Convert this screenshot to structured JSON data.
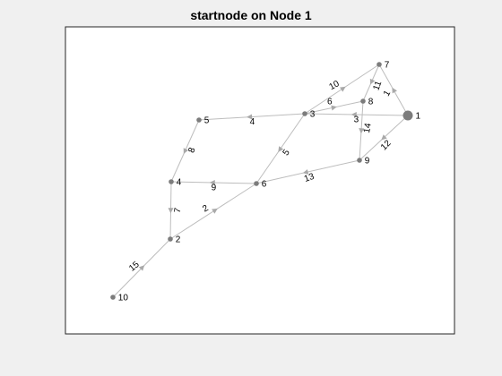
{
  "title": "startnode on Node 1",
  "colors": {
    "figure_bg": "#f0f0f0",
    "axes_bg": "#ffffff",
    "edge": "#bdbdbd",
    "arrow": "#a9a9a9",
    "node": "#7c7c7c"
  },
  "graph": {
    "highlighted_node": "1",
    "nodes": [
      {
        "id": "1",
        "label": "1"
      },
      {
        "id": "2",
        "label": "2"
      },
      {
        "id": "3",
        "label": "3"
      },
      {
        "id": "4",
        "label": "4"
      },
      {
        "id": "5",
        "label": "5"
      },
      {
        "id": "6",
        "label": "6"
      },
      {
        "id": "7",
        "label": "7"
      },
      {
        "id": "8",
        "label": "8"
      },
      {
        "id": "9",
        "label": "9"
      },
      {
        "id": "10",
        "label": "10"
      }
    ],
    "edges": [
      {
        "from": "1",
        "to": "7",
        "weight": "1"
      },
      {
        "from": "1",
        "to": "3",
        "weight": "3"
      },
      {
        "from": "1",
        "to": "9",
        "weight": "12"
      },
      {
        "from": "3",
        "to": "8",
        "weight": "6"
      },
      {
        "from": "3",
        "to": "7",
        "weight": "10"
      },
      {
        "from": "7",
        "to": "8",
        "weight": "11"
      },
      {
        "from": "8",
        "to": "9",
        "weight": "14"
      },
      {
        "from": "3",
        "to": "5",
        "weight": "4"
      },
      {
        "from": "3",
        "to": "6",
        "weight": "5"
      },
      {
        "from": "9",
        "to": "6",
        "weight": "13"
      },
      {
        "from": "5",
        "to": "4",
        "weight": "8"
      },
      {
        "from": "6",
        "to": "4",
        "weight": "9"
      },
      {
        "from": "4",
        "to": "2",
        "weight": "7"
      },
      {
        "from": "2",
        "to": "6",
        "weight": "2"
      },
      {
        "from": "10",
        "to": "2",
        "weight": "15"
      }
    ]
  }
}
